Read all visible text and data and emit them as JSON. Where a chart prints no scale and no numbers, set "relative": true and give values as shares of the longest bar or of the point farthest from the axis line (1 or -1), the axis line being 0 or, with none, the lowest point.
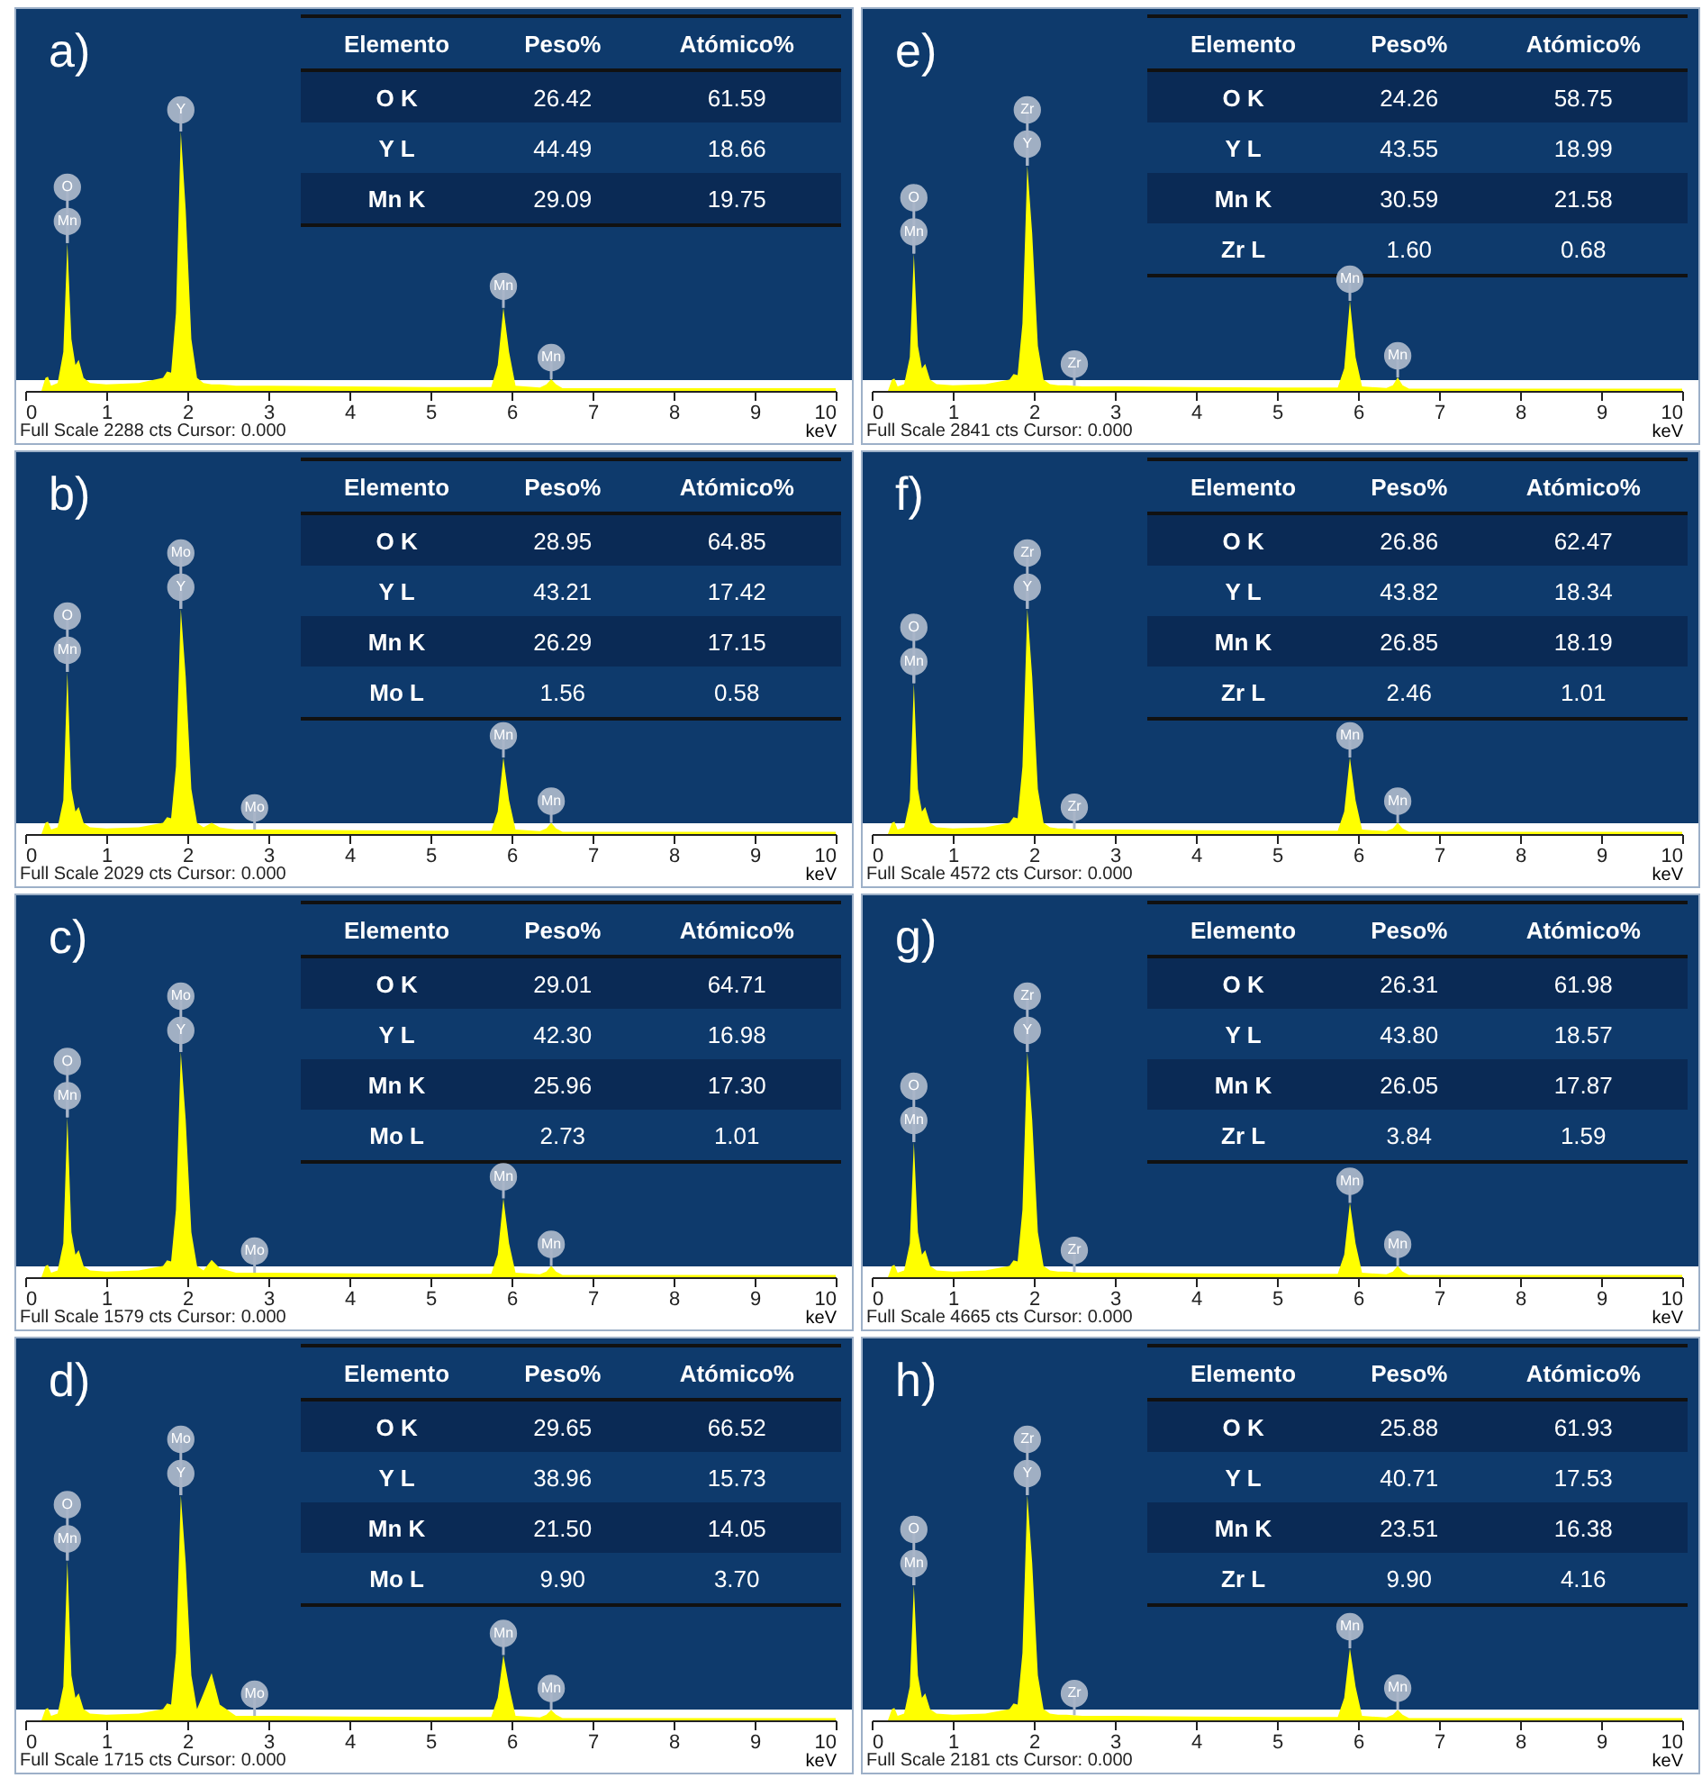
{
  "chart_data": [
    {
      "type": "area",
      "title": "a)",
      "xlabel": "keV",
      "relative": true,
      "color": "#ffff00",
      "xlim": [
        0,
        10
      ],
      "xticks": [
        0,
        1,
        2,
        3,
        4,
        5,
        6,
        7,
        8,
        9,
        10
      ],
      "x": [
        0,
        0.2,
        0.25,
        0.28,
        0.32,
        0.4,
        0.47,
        0.52,
        0.57,
        0.62,
        0.66,
        0.72,
        0.8,
        1.0,
        1.4,
        1.7,
        1.75,
        1.8,
        1.86,
        1.92,
        1.98,
        2.05,
        2.12,
        2.2,
        2.3,
        2.4,
        2.6,
        3,
        4,
        5,
        5.75,
        5.83,
        5.9,
        5.97,
        6.05,
        6.35,
        6.43,
        6.49,
        6.55,
        6.63,
        7,
        8,
        9,
        10
      ],
      "values": [
        0,
        0,
        0.05,
        0.055,
        0.02,
        0.03,
        0.15,
        0.57,
        0.2,
        0.1,
        0.12,
        0.05,
        0.03,
        0.025,
        0.03,
        0.05,
        0.075,
        0.07,
        0.3,
        1,
        0.7,
        0.2,
        0.05,
        0.03,
        0.025,
        0.025,
        0.02,
        0.02,
        0.017,
        0.015,
        0.015,
        0.1,
        0.32,
        0.15,
        0.02,
        0.013,
        0.025,
        0.045,
        0.025,
        0.01,
        0.01,
        0.01,
        0.01,
        0.01
      ],
      "annotations": [
        {
          "text": "O",
          "x": 0.52,
          "y": 0.57
        },
        {
          "text": "Mn",
          "x": 0.52,
          "y": 0.57
        },
        {
          "text": "Y",
          "x": 1.92,
          "y": 1
        },
        {
          "text": "Mn",
          "x": 5.9,
          "y": 0.32
        },
        {
          "text": "Mn",
          "x": 6.49,
          "y": 0.045
        },
        "Full Scale 2288 cts Cursor: 0.000"
      ]
    },
    {
      "type": "other",
      "xlabel": "Elemento",
      "categories": [
        "O K",
        "Y L",
        "Mn K"
      ],
      "series": [
        {
          "name": "Peso%",
          "values": [
            26.42,
            44.49,
            29.09
          ],
          "value_labels": [
            "26.42",
            "44.49",
            "29.09"
          ]
        },
        {
          "name": "Atómico%",
          "values": [
            61.59,
            18.66,
            19.75
          ],
          "value_labels": [
            "61.59",
            "18.66",
            "19.75"
          ]
        }
      ]
    },
    {
      "type": "area",
      "title": "b)",
      "xlabel": "keV",
      "relative": true,
      "color": "#ffff00",
      "xlim": [
        0,
        10
      ],
      "xticks": [
        0,
        1,
        2,
        3,
        4,
        5,
        6,
        7,
        8,
        9,
        10
      ],
      "x": [
        0,
        0.2,
        0.25,
        0.28,
        0.32,
        0.4,
        0.47,
        0.52,
        0.57,
        0.62,
        0.66,
        0.72,
        0.8,
        1.0,
        1.4,
        1.7,
        1.75,
        1.8,
        1.86,
        1.92,
        1.98,
        2.05,
        2.12,
        2.2,
        2.3,
        2.4,
        2.6,
        3,
        4,
        5,
        5.75,
        5.83,
        5.9,
        5.97,
        6.05,
        6.35,
        6.43,
        6.49,
        6.55,
        6.63,
        7,
        8,
        9,
        10
      ],
      "values": [
        0,
        0,
        0.05,
        0.055,
        0.02,
        0.03,
        0.15,
        0.72,
        0.2,
        0.1,
        0.12,
        0.05,
        0.03,
        0.025,
        0.03,
        0.05,
        0.075,
        0.07,
        0.3,
        1,
        0.7,
        0.2,
        0.05,
        0.03,
        0.05,
        0.03,
        0.02,
        0.02,
        0.017,
        0.015,
        0.015,
        0.1,
        0.34,
        0.15,
        0.02,
        0.013,
        0.025,
        0.05,
        0.025,
        0.01,
        0.01,
        0.01,
        0.01,
        0.01
      ],
      "annotations": [
        {
          "text": "O",
          "x": 0.52,
          "y": 0.72
        },
        {
          "text": "Mn",
          "x": 0.52,
          "y": 0.72
        },
        {
          "text": "Mo",
          "x": 1.92,
          "y": 1
        },
        {
          "text": "Y",
          "x": 1.92,
          "y": 1
        },
        {
          "text": "Mo",
          "x": 2.83,
          "y": 0.02
        },
        {
          "text": "Mn",
          "x": 5.9,
          "y": 0.34
        },
        {
          "text": "Mn",
          "x": 6.49,
          "y": 0.05
        },
        "Full Scale 2029 cts Cursor: 0.000"
      ]
    },
    {
      "type": "other",
      "xlabel": "Elemento",
      "categories": [
        "O K",
        "Y L",
        "Mn K",
        "Mo L"
      ],
      "series": [
        {
          "name": "Peso%",
          "values": [
            28.95,
            43.21,
            26.29,
            1.56
          ],
          "value_labels": [
            "28.95",
            "43.21",
            "26.29",
            "1.56"
          ]
        },
        {
          "name": "Atómico%",
          "values": [
            64.85,
            17.42,
            17.15,
            0.58
          ],
          "value_labels": [
            "64.85",
            "17.42",
            "17.15",
            "0.58"
          ]
        }
      ]
    },
    {
      "type": "area",
      "title": "c)",
      "xlabel": "keV",
      "relative": true,
      "color": "#ffff00",
      "xlim": [
        0,
        10
      ],
      "xticks": [
        0,
        1,
        2,
        3,
        4,
        5,
        6,
        7,
        8,
        9,
        10
      ],
      "x": [
        0,
        0.2,
        0.25,
        0.28,
        0.32,
        0.4,
        0.47,
        0.52,
        0.57,
        0.62,
        0.66,
        0.72,
        0.8,
        1.0,
        1.4,
        1.7,
        1.75,
        1.8,
        1.86,
        1.92,
        1.98,
        2.05,
        2.12,
        2.2,
        2.3,
        2.4,
        2.6,
        3,
        4,
        5,
        5.75,
        5.83,
        5.9,
        5.97,
        6.05,
        6.35,
        6.43,
        6.49,
        6.55,
        6.63,
        7,
        8,
        9,
        10
      ],
      "values": [
        0,
        0,
        0.05,
        0.055,
        0.02,
        0.03,
        0.15,
        0.71,
        0.2,
        0.1,
        0.12,
        0.05,
        0.03,
        0.025,
        0.03,
        0.05,
        0.075,
        0.07,
        0.3,
        1,
        0.7,
        0.2,
        0.05,
        0.03,
        0.077,
        0.04,
        0.02,
        0.02,
        0.017,
        0.015,
        0.015,
        0.1,
        0.35,
        0.15,
        0.02,
        0.013,
        0.025,
        0.05,
        0.025,
        0.01,
        0.01,
        0.01,
        0.01,
        0.01
      ],
      "annotations": [
        {
          "text": "O",
          "x": 0.52,
          "y": 0.71
        },
        {
          "text": "Mn",
          "x": 0.52,
          "y": 0.71
        },
        {
          "text": "Mo",
          "x": 1.92,
          "y": 1
        },
        {
          "text": "Y",
          "x": 1.92,
          "y": 1
        },
        {
          "text": "Mo",
          "x": 2.83,
          "y": 0.02
        },
        {
          "text": "Mn",
          "x": 5.9,
          "y": 0.35
        },
        {
          "text": "Mn",
          "x": 6.49,
          "y": 0.05
        },
        "Full Scale 1579 cts Cursor: 0.000"
      ]
    },
    {
      "type": "other",
      "xlabel": "Elemento",
      "categories": [
        "O K",
        "Y L",
        "Mn K",
        "Mo L"
      ],
      "series": [
        {
          "name": "Peso%",
          "values": [
            29.01,
            42.3,
            25.96,
            2.73
          ],
          "value_labels": [
            "29.01",
            "42.30",
            "25.96",
            "2.73"
          ]
        },
        {
          "name": "Atómico%",
          "values": [
            64.71,
            16.98,
            17.3,
            1.01
          ],
          "value_labels": [
            "64.71",
            "16.98",
            "17.30",
            "1.01"
          ]
        }
      ]
    },
    {
      "type": "area",
      "title": "d)",
      "xlabel": "keV",
      "relative": true,
      "color": "#ffff00",
      "xlim": [
        0,
        10
      ],
      "xticks": [
        0,
        1,
        2,
        3,
        4,
        5,
        6,
        7,
        8,
        9,
        10
      ],
      "x": [
        0,
        0.2,
        0.25,
        0.28,
        0.32,
        0.4,
        0.47,
        0.52,
        0.57,
        0.62,
        0.66,
        0.72,
        0.8,
        1.0,
        1.4,
        1.7,
        1.75,
        1.8,
        1.86,
        1.92,
        1.98,
        2.05,
        2.12,
        2.2,
        2.3,
        2.4,
        2.6,
        3,
        4,
        5,
        5.75,
        5.83,
        5.9,
        5.97,
        6.05,
        6.35,
        6.43,
        6.49,
        6.55,
        6.63,
        7,
        8,
        9,
        10
      ],
      "values": [
        0,
        0,
        0.05,
        0.055,
        0.02,
        0.03,
        0.15,
        0.71,
        0.2,
        0.1,
        0.12,
        0.05,
        0.03,
        0.025,
        0.03,
        0.05,
        0.075,
        0.07,
        0.3,
        1,
        0.7,
        0.2,
        0.05,
        0.12,
        0.21,
        0.07,
        0.02,
        0.02,
        0.017,
        0.015,
        0.015,
        0.1,
        0.29,
        0.15,
        0.02,
        0.013,
        0.025,
        0.046,
        0.025,
        0.01,
        0.01,
        0.01,
        0.01,
        0.01
      ],
      "annotations": [
        {
          "text": "O",
          "x": 0.52,
          "y": 0.71
        },
        {
          "text": "Mn",
          "x": 0.52,
          "y": 0.71
        },
        {
          "text": "Mo",
          "x": 1.92,
          "y": 1
        },
        {
          "text": "Y",
          "x": 1.92,
          "y": 1
        },
        {
          "text": "Mo",
          "x": 2.83,
          "y": 0.02
        },
        {
          "text": "Mn",
          "x": 5.9,
          "y": 0.29
        },
        {
          "text": "Mn",
          "x": 6.49,
          "y": 0.046
        },
        "Full Scale 1715 cts Cursor: 0.000"
      ]
    },
    {
      "type": "other",
      "xlabel": "Elemento",
      "categories": [
        "O K",
        "Y L",
        "Mn K",
        "Mo L"
      ],
      "series": [
        {
          "name": "Peso%",
          "values": [
            29.65,
            38.96,
            21.5,
            9.9
          ],
          "value_labels": [
            "29.65",
            "38.96",
            "21.50",
            "9.90"
          ]
        },
        {
          "name": "Atómico%",
          "values": [
            66.52,
            15.73,
            14.05,
            3.7
          ],
          "value_labels": [
            "66.52",
            "15.73",
            "14.05",
            "3.70"
          ]
        }
      ]
    },
    {
      "type": "area",
      "title": "e)",
      "xlabel": "keV",
      "relative": true,
      "color": "#ffff00",
      "xlim": [
        0,
        10
      ],
      "xticks": [
        0,
        1,
        2,
        3,
        4,
        5,
        6,
        7,
        8,
        9,
        10
      ],
      "x": [
        0,
        0.2,
        0.25,
        0.28,
        0.32,
        0.4,
        0.47,
        0.52,
        0.57,
        0.62,
        0.66,
        0.72,
        0.8,
        1.0,
        1.4,
        1.7,
        1.75,
        1.8,
        1.86,
        1.92,
        1.98,
        2.05,
        2.12,
        2.2,
        2.3,
        2.4,
        2.6,
        3,
        4,
        5,
        5.75,
        5.83,
        5.9,
        5.97,
        6.05,
        6.35,
        6.43,
        6.49,
        6.55,
        6.63,
        7,
        8,
        9,
        10
      ],
      "values": [
        0,
        0,
        0.05,
        0.055,
        0.02,
        0.03,
        0.15,
        0.61,
        0.2,
        0.1,
        0.12,
        0.05,
        0.03,
        0.025,
        0.03,
        0.05,
        0.075,
        0.07,
        0.3,
        1,
        0.7,
        0.2,
        0.05,
        0.03,
        0.025,
        0.025,
        0.02,
        0.02,
        0.017,
        0.015,
        0.015,
        0.1,
        0.4,
        0.15,
        0.02,
        0.013,
        0.025,
        0.06,
        0.025,
        0.01,
        0.01,
        0.01,
        0.01,
        0.01
      ],
      "annotations": [
        {
          "text": "O",
          "x": 0.52,
          "y": 0.61
        },
        {
          "text": "Mn",
          "x": 0.52,
          "y": 0.61
        },
        {
          "text": "Zr",
          "x": 1.92,
          "y": 1
        },
        {
          "text": "Y",
          "x": 1.92,
          "y": 1
        },
        {
          "text": "Zr",
          "x": 2.5,
          "y": 0.023
        },
        {
          "text": "Mn",
          "x": 5.9,
          "y": 0.4
        },
        {
          "text": "Mn",
          "x": 6.49,
          "y": 0.06
        },
        "Full Scale 2841 cts Cursor: 0.000"
      ]
    },
    {
      "type": "other",
      "xlabel": "Elemento",
      "categories": [
        "O K",
        "Y L",
        "Mn K",
        "Zr L"
      ],
      "series": [
        {
          "name": "Peso%",
          "values": [
            24.26,
            43.55,
            30.59,
            1.6
          ],
          "value_labels": [
            "24.26",
            "43.55",
            "30.59",
            "1.60"
          ]
        },
        {
          "name": "Atómico%",
          "values": [
            58.75,
            18.99,
            21.58,
            0.68
          ],
          "value_labels": [
            "58.75",
            "18.99",
            "21.58",
            "0.68"
          ]
        }
      ]
    },
    {
      "type": "area",
      "title": "f)",
      "xlabel": "keV",
      "relative": true,
      "color": "#ffff00",
      "xlim": [
        0,
        10
      ],
      "xticks": [
        0,
        1,
        2,
        3,
        4,
        5,
        6,
        7,
        8,
        9,
        10
      ],
      "x": [
        0,
        0.2,
        0.25,
        0.28,
        0.32,
        0.4,
        0.47,
        0.52,
        0.57,
        0.62,
        0.66,
        0.72,
        0.8,
        1.0,
        1.4,
        1.7,
        1.75,
        1.8,
        1.86,
        1.92,
        1.98,
        2.05,
        2.12,
        2.2,
        2.3,
        2.4,
        2.6,
        3,
        4,
        5,
        5.75,
        5.83,
        5.9,
        5.97,
        6.05,
        6.35,
        6.43,
        6.49,
        6.55,
        6.63,
        7,
        8,
        9,
        10
      ],
      "values": [
        0,
        0,
        0.05,
        0.055,
        0.02,
        0.03,
        0.15,
        0.67,
        0.2,
        0.1,
        0.12,
        0.05,
        0.03,
        0.025,
        0.03,
        0.05,
        0.075,
        0.07,
        0.3,
        1,
        0.7,
        0.2,
        0.05,
        0.03,
        0.025,
        0.025,
        0.02,
        0.02,
        0.017,
        0.015,
        0.015,
        0.1,
        0.34,
        0.15,
        0.02,
        0.013,
        0.025,
        0.05,
        0.025,
        0.01,
        0.01,
        0.01,
        0.01,
        0.01
      ],
      "annotations": [
        {
          "text": "O",
          "x": 0.52,
          "y": 0.67
        },
        {
          "text": "Mn",
          "x": 0.52,
          "y": 0.67
        },
        {
          "text": "Zr",
          "x": 1.92,
          "y": 1
        },
        {
          "text": "Y",
          "x": 1.92,
          "y": 1
        },
        {
          "text": "Zr",
          "x": 2.5,
          "y": 0.023
        },
        {
          "text": "Mn",
          "x": 5.9,
          "y": 0.34
        },
        {
          "text": "Mn",
          "x": 6.49,
          "y": 0.05
        },
        "Full Scale 4572 cts Cursor: 0.000"
      ]
    },
    {
      "type": "other",
      "xlabel": "Elemento",
      "categories": [
        "O K",
        "Y L",
        "Mn K",
        "Zr L"
      ],
      "series": [
        {
          "name": "Peso%",
          "values": [
            26.86,
            43.82,
            26.85,
            2.46
          ],
          "value_labels": [
            "26.86",
            "43.82",
            "26.85",
            "2.46"
          ]
        },
        {
          "name": "Atómico%",
          "values": [
            62.47,
            18.34,
            18.19,
            1.01
          ],
          "value_labels": [
            "62.47",
            "18.34",
            "18.19",
            "1.01"
          ]
        }
      ]
    },
    {
      "type": "area",
      "title": "g)",
      "xlabel": "keV",
      "relative": true,
      "color": "#ffff00",
      "xlim": [
        0,
        10
      ],
      "xticks": [
        0,
        1,
        2,
        3,
        4,
        5,
        6,
        7,
        8,
        9,
        10
      ],
      "x": [
        0,
        0.2,
        0.25,
        0.28,
        0.32,
        0.4,
        0.47,
        0.52,
        0.57,
        0.62,
        0.66,
        0.72,
        0.8,
        1.0,
        1.4,
        1.7,
        1.75,
        1.8,
        1.86,
        1.92,
        1.98,
        2.05,
        2.12,
        2.2,
        2.3,
        2.4,
        2.6,
        3,
        4,
        5,
        5.75,
        5.83,
        5.9,
        5.97,
        6.05,
        6.35,
        6.43,
        6.49,
        6.55,
        6.63,
        7,
        8,
        9,
        10
      ],
      "values": [
        0,
        0,
        0.05,
        0.055,
        0.02,
        0.03,
        0.15,
        0.6,
        0.2,
        0.1,
        0.12,
        0.05,
        0.03,
        0.025,
        0.03,
        0.05,
        0.075,
        0.07,
        0.3,
        1,
        0.7,
        0.2,
        0.05,
        0.03,
        0.025,
        0.025,
        0.02,
        0.02,
        0.017,
        0.015,
        0.015,
        0.1,
        0.33,
        0.15,
        0.02,
        0.013,
        0.025,
        0.05,
        0.025,
        0.01,
        0.01,
        0.01,
        0.01,
        0.01
      ],
      "annotations": [
        {
          "text": "O",
          "x": 0.52,
          "y": 0.6
        },
        {
          "text": "Mn",
          "x": 0.52,
          "y": 0.6
        },
        {
          "text": "Zr",
          "x": 1.92,
          "y": 1
        },
        {
          "text": "Y",
          "x": 1.92,
          "y": 1
        },
        {
          "text": "Zr",
          "x": 2.5,
          "y": 0.023
        },
        {
          "text": "Mn",
          "x": 5.9,
          "y": 0.33
        },
        {
          "text": "Mn",
          "x": 6.49,
          "y": 0.05
        },
        "Full Scale 4665 cts Cursor: 0.000"
      ]
    },
    {
      "type": "other",
      "xlabel": "Elemento",
      "categories": [
        "O K",
        "Y L",
        "Mn K",
        "Zr L"
      ],
      "series": [
        {
          "name": "Peso%",
          "values": [
            26.31,
            43.8,
            26.05,
            3.84
          ],
          "value_labels": [
            "26.31",
            "43.80",
            "26.05",
            "3.84"
          ]
        },
        {
          "name": "Atómico%",
          "values": [
            61.98,
            18.57,
            17.87,
            1.59
          ],
          "value_labels": [
            "61.98",
            "18.57",
            "17.87",
            "1.59"
          ]
        }
      ]
    },
    {
      "type": "area",
      "title": "h)",
      "xlabel": "keV",
      "relative": true,
      "color": "#ffff00",
      "xlim": [
        0,
        10
      ],
      "xticks": [
        0,
        1,
        2,
        3,
        4,
        5,
        6,
        7,
        8,
        9,
        10
      ],
      "x": [
        0,
        0.2,
        0.25,
        0.28,
        0.32,
        0.4,
        0.47,
        0.52,
        0.57,
        0.62,
        0.66,
        0.72,
        0.8,
        1.0,
        1.4,
        1.7,
        1.75,
        1.8,
        1.86,
        1.92,
        1.98,
        2.05,
        2.12,
        2.2,
        2.3,
        2.4,
        2.6,
        3,
        4,
        5,
        5.75,
        5.83,
        5.9,
        5.97,
        6.05,
        6.35,
        6.43,
        6.49,
        6.55,
        6.63,
        7,
        8,
        9,
        10
      ],
      "values": [
        0,
        0,
        0.05,
        0.055,
        0.02,
        0.03,
        0.15,
        0.6,
        0.2,
        0.1,
        0.12,
        0.05,
        0.03,
        0.025,
        0.03,
        0.05,
        0.075,
        0.07,
        0.3,
        1,
        0.7,
        0.2,
        0.05,
        0.03,
        0.025,
        0.025,
        0.02,
        0.02,
        0.017,
        0.015,
        0.015,
        0.1,
        0.32,
        0.15,
        0.02,
        0.013,
        0.025,
        0.047,
        0.025,
        0.01,
        0.01,
        0.01,
        0.01,
        0.01
      ],
      "annotations": [
        {
          "text": "O",
          "x": 0.52,
          "y": 0.6
        },
        {
          "text": "Mn",
          "x": 0.52,
          "y": 0.6
        },
        {
          "text": "Zr",
          "x": 1.92,
          "y": 1
        },
        {
          "text": "Y",
          "x": 1.92,
          "y": 1
        },
        {
          "text": "Zr",
          "x": 2.5,
          "y": 0.023
        },
        {
          "text": "Mn",
          "x": 5.9,
          "y": 0.32
        },
        {
          "text": "Mn",
          "x": 6.49,
          "y": 0.047
        },
        "Full Scale 2181 cts Cursor: 0.000"
      ]
    },
    {
      "type": "other",
      "xlabel": "Elemento",
      "categories": [
        "O K",
        "Y L",
        "Mn K",
        "Zr L"
      ],
      "series": [
        {
          "name": "Peso%",
          "values": [
            25.88,
            40.71,
            23.51,
            9.9
          ],
          "value_labels": [
            "25.88",
            "40.71",
            "23.51",
            "9.90"
          ]
        },
        {
          "name": "Atómico%",
          "values": [
            61.93,
            17.53,
            16.38,
            4.16
          ],
          "value_labels": [
            "61.93",
            "17.53",
            "16.38",
            "4.16"
          ]
        }
      ]
    }
  ]
}
